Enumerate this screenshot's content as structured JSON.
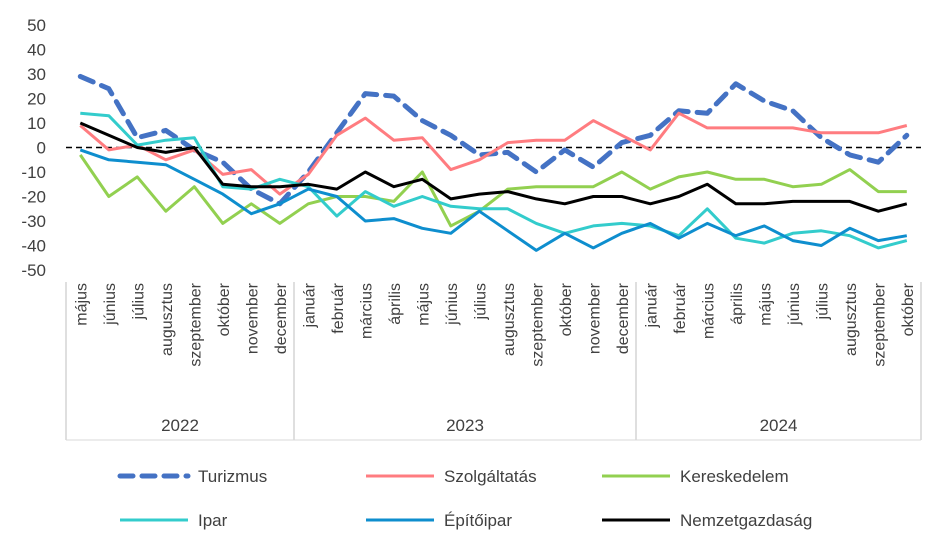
{
  "chart_data": {
    "type": "line",
    "title": "",
    "xlabel": "",
    "ylabel": "",
    "ylim": [
      -50,
      50
    ],
    "yticks": [
      50,
      40,
      30,
      20,
      10,
      0,
      -10,
      -20,
      -30,
      -40,
      -50
    ],
    "grid": false,
    "zero_line": "dashed",
    "legend_position": "bottom",
    "categories": [
      "május",
      "június",
      "július",
      "augusztus",
      "szeptember",
      "október",
      "november",
      "december",
      "január",
      "február",
      "március",
      "április",
      "május",
      "június",
      "július",
      "augusztus",
      "szeptember",
      "október",
      "november",
      "december",
      "január",
      "február",
      "március",
      "április",
      "május",
      "június",
      "július",
      "augusztus",
      "szeptember",
      "október"
    ],
    "year_groups": [
      {
        "label": "2022",
        "start": 0,
        "end": 7
      },
      {
        "label": "2023",
        "start": 8,
        "end": 19
      },
      {
        "label": "2024",
        "start": 20,
        "end": 29
      }
    ],
    "series": [
      {
        "name": "Turizmus",
        "color": "#4472C4",
        "style": "dashed",
        "values": [
          29,
          24,
          4,
          7,
          -1,
          -6,
          -17,
          -23,
          -10,
          6,
          22,
          21,
          11,
          5,
          -3,
          -2,
          -10,
          -1,
          -8,
          2,
          5,
          15,
          14,
          26,
          19,
          15,
          4,
          -3,
          -6,
          5
        ]
      },
      {
        "name": "Szolgáltatás",
        "color": "#FF7C80",
        "style": "solid",
        "values": [
          9,
          -1,
          1,
          -5,
          -1,
          -11,
          -9,
          -19,
          -11,
          5,
          12,
          3,
          4,
          -9,
          -5,
          2,
          3,
          3,
          11,
          5,
          -1,
          14,
          8,
          8,
          8,
          8,
          6,
          6,
          6,
          9
        ]
      },
      {
        "name": "Kereskedelem",
        "color": "#92D050",
        "style": "solid",
        "values": [
          -3,
          -20,
          -12,
          -26,
          -16,
          -31,
          -23,
          -31,
          -23,
          -20,
          -20,
          -22,
          -10,
          -32,
          -26,
          -17,
          -16,
          -16,
          -16,
          -10,
          -17,
          -12,
          -10,
          -13,
          -13,
          -16,
          -15,
          -9,
          -18,
          -18
        ]
      },
      {
        "name": "Ipar",
        "color": "#33CCCC",
        "style": "solid",
        "values": [
          14,
          13,
          1,
          3,
          4,
          -16,
          -17,
          -13,
          -16,
          -28,
          -18,
          -24,
          -20,
          -24,
          -25,
          -25,
          -31,
          -35,
          -32,
          -31,
          -32,
          -36,
          -25,
          -37,
          -39,
          -35,
          -34,
          -36,
          -41,
          -38
        ]
      },
      {
        "name": "Építőipar",
        "color": "#0E8ECE",
        "style": "solid",
        "values": [
          -1,
          -5,
          -6,
          -7,
          -13,
          -19,
          -27,
          -23,
          -17,
          -20,
          -30,
          -29,
          -33,
          -35,
          -26,
          -34,
          -42,
          -35,
          -41,
          -35,
          -31,
          -37,
          -31,
          -36,
          -32,
          -38,
          -40,
          -33,
          -38,
          -36
        ]
      },
      {
        "name": "Nemzetgazdaság",
        "color": "#000000",
        "style": "solid",
        "values": [
          10,
          5,
          0,
          -2,
          0,
          -15,
          -16,
          -16,
          -15,
          -17,
          -10,
          -16,
          -13,
          -21,
          -19,
          -18,
          -21,
          -23,
          -20,
          -20,
          -23,
          -20,
          -15,
          -23,
          -23,
          -22,
          -22,
          -22,
          -26,
          -23
        ]
      }
    ]
  }
}
